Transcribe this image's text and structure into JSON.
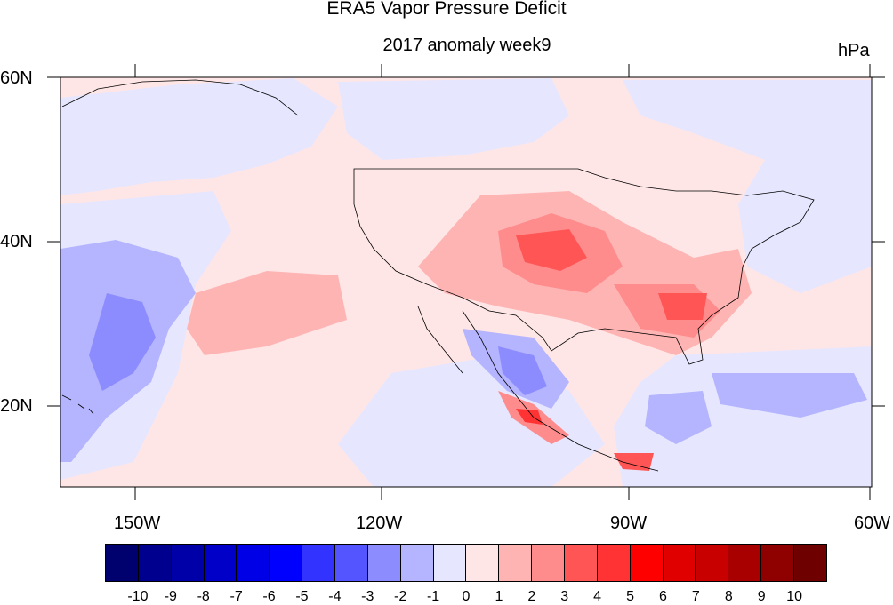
{
  "title": "ERA5 Vapor Pressure Deficit",
  "subtitle": "2017 anomaly week9",
  "units": "hPa",
  "lat_labels": [
    "60N",
    "40N",
    "20N"
  ],
  "lon_labels": [
    "150W",
    "120W",
    "90W",
    "60W"
  ],
  "colorbar": {
    "labels": [
      "-10",
      "-9",
      "-8",
      "-7",
      "-6",
      "-5",
      "-4",
      "-3",
      "-2",
      "-1",
      "0",
      "1",
      "2",
      "3",
      "4",
      "5",
      "6",
      "7",
      "8",
      "9",
      "10"
    ],
    "colors": [
      "#00006f",
      "#00008f",
      "#0000a8",
      "#0000c8",
      "#0000e6",
      "#0000ff",
      "#3333ff",
      "#5555ff",
      "#8c8cff",
      "#b4b4ff",
      "#e6e6ff",
      "#ffe6e6",
      "#ffb4b4",
      "#ff8c8c",
      "#ff5555",
      "#ff3333",
      "#ff0000",
      "#e00000",
      "#c80000",
      "#a80000",
      "#8f0000",
      "#6f0000"
    ]
  }
}
